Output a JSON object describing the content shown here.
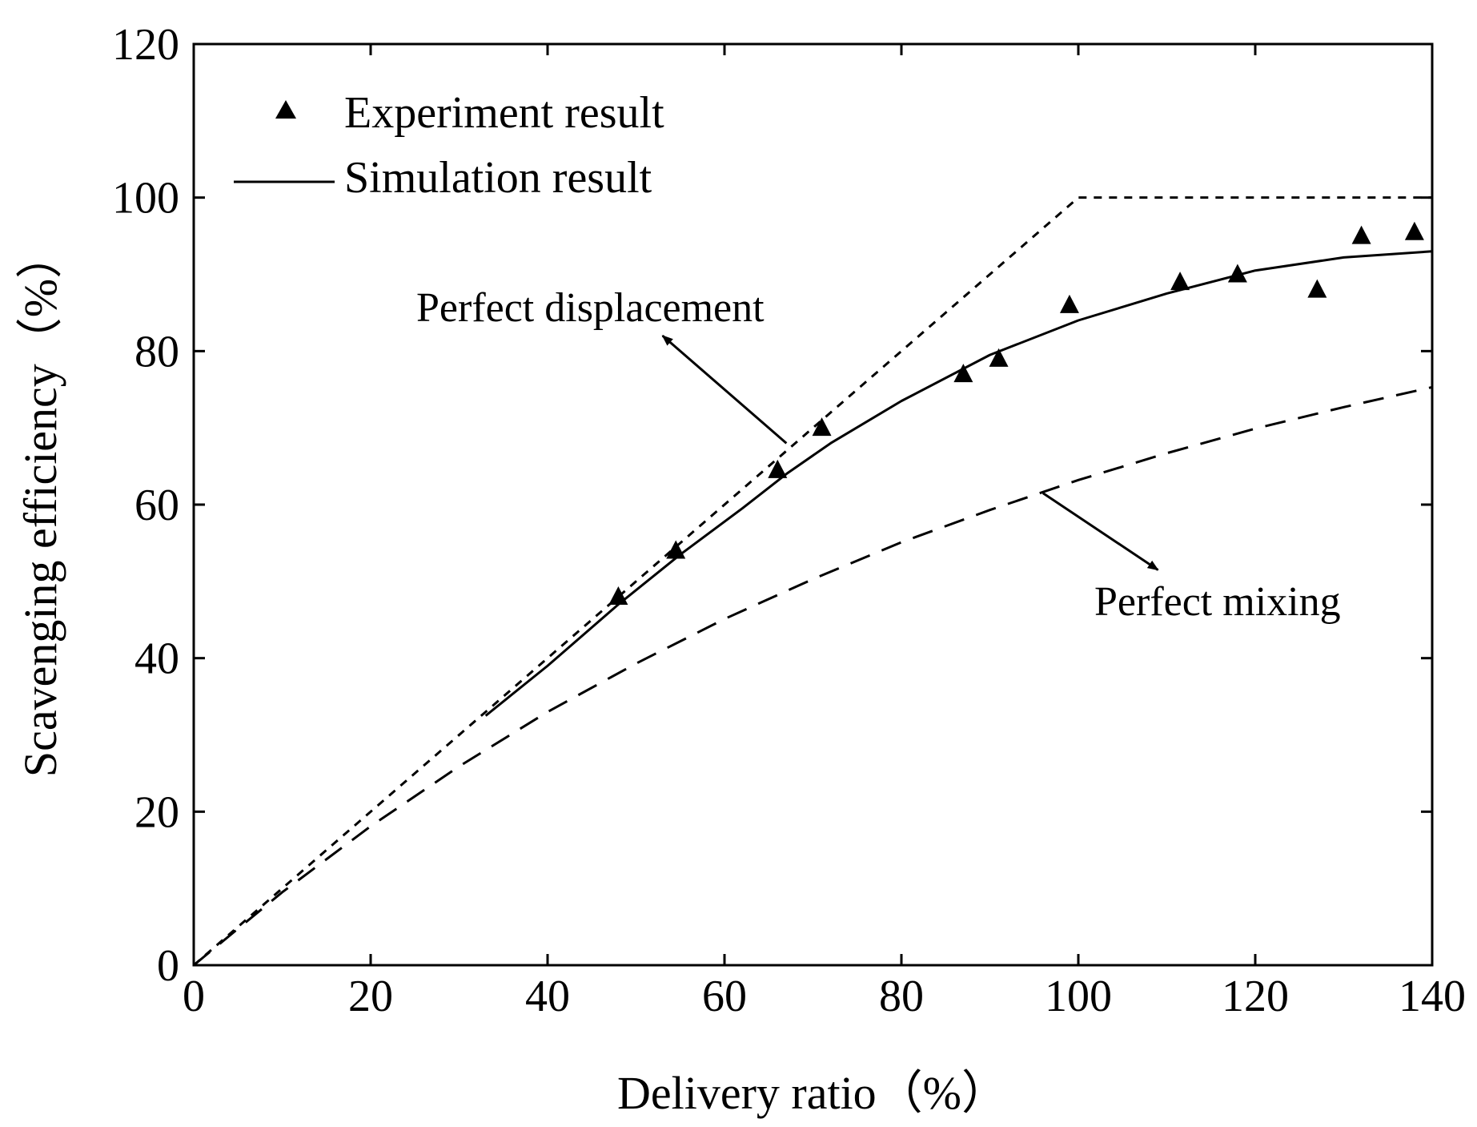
{
  "chart_data": {
    "type": "line",
    "title": "",
    "xlabel": "Delivery ratio（%）",
    "ylabel": "Scavenging efficiency（%）",
    "xlim": [
      0,
      140
    ],
    "ylim": [
      0,
      120
    ],
    "x_ticks": [
      0,
      20,
      40,
      60,
      80,
      100,
      120,
      140
    ],
    "y_ticks": [
      0,
      20,
      40,
      60,
      80,
      100,
      120
    ],
    "grid": false,
    "legend_position": "top-left",
    "series": [
      {
        "name": "Experiment result",
        "kind": "scatter",
        "marker": "triangle",
        "x": [
          48,
          54.5,
          66,
          71,
          87,
          91,
          99,
          111.5,
          118,
          127,
          132,
          138
        ],
        "y": [
          48,
          54,
          64.5,
          70,
          77,
          79,
          86,
          89,
          90,
          88,
          95,
          95.5
        ]
      },
      {
        "name": "Simulation result",
        "kind": "line",
        "style": "solid",
        "x": [
          33,
          40,
          48,
          55,
          62,
          67,
          72,
          80,
          90,
          100,
          110,
          120,
          130,
          140
        ],
        "y": [
          32.5,
          39,
          47,
          53.5,
          59.5,
          64,
          68,
          73.5,
          79.5,
          84,
          87.5,
          90.5,
          92.2,
          93
        ]
      },
      {
        "name": "Perfect displacement",
        "kind": "line",
        "style": "dotted",
        "x": [
          0,
          100,
          140
        ],
        "y": [
          0,
          100,
          100
        ]
      },
      {
        "name": "Perfect mixing",
        "kind": "line",
        "style": "dashed",
        "x": [
          0,
          10,
          20,
          30,
          40,
          50,
          60,
          70,
          80,
          90,
          100,
          110,
          120,
          130,
          140
        ],
        "y": [
          0,
          9.5,
          18.1,
          25.9,
          33,
          39.3,
          45.1,
          50.3,
          55.1,
          59.3,
          63.2,
          66.7,
          69.9,
          72.7,
          75.3
        ]
      }
    ],
    "legend": [
      {
        "label": "Experiment result",
        "marker": "triangle"
      },
      {
        "label": "Simulation result",
        "line": "solid"
      }
    ],
    "annotations": [
      {
        "text": "Perfect displacement",
        "points_to_series": "Perfect displacement",
        "arrow_from": [
          67,
          68
        ],
        "arrow_to": [
          53,
          82
        ]
      },
      {
        "text": "Perfect mixing",
        "points_to_series": "Perfect mixing",
        "arrow_from": [
          96,
          61.5
        ],
        "arrow_to": [
          109,
          51.5
        ]
      }
    ]
  }
}
